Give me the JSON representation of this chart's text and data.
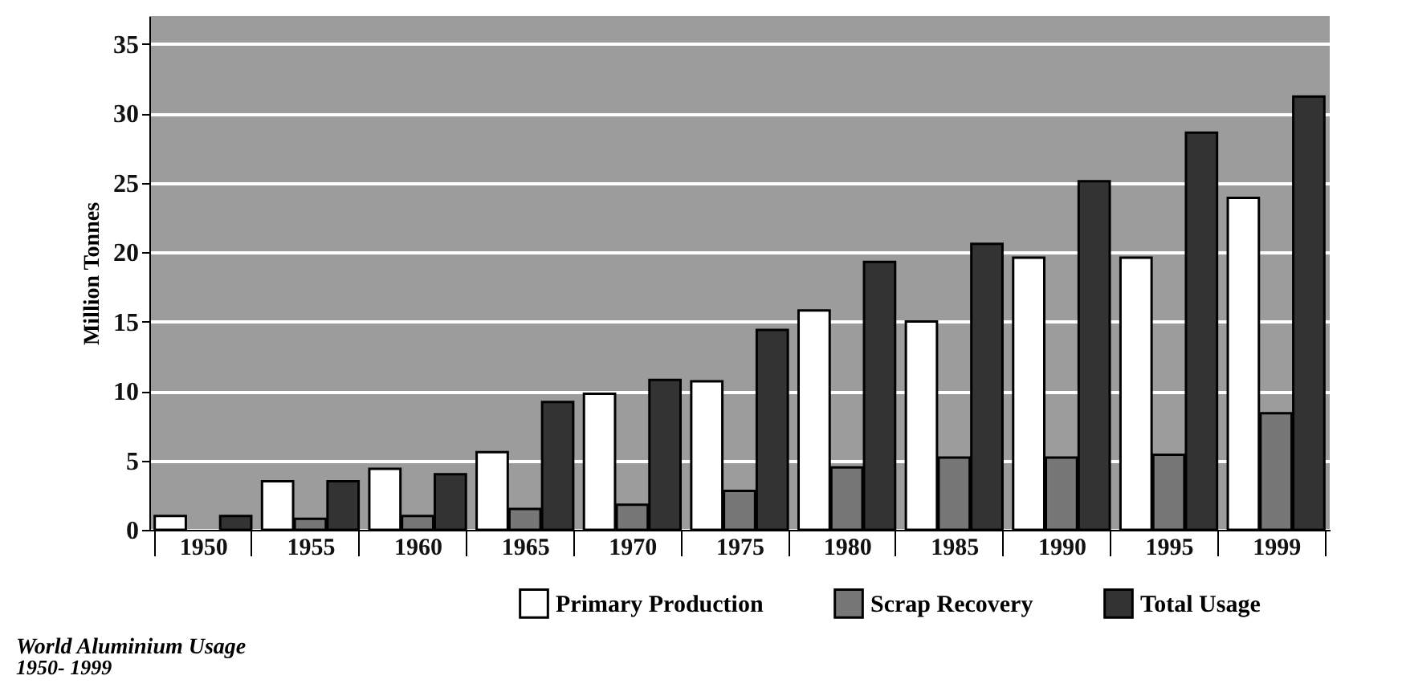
{
  "chart_data": {
    "type": "bar",
    "title": "World Aluminium Usage",
    "subtitle": "1950- 1999",
    "ylabel": "Million Tonnes",
    "categories": [
      "1950",
      "1955",
      "1960",
      "1965",
      "1970",
      "1975",
      "1980",
      "1985",
      "1990",
      "1995",
      "1999"
    ],
    "series": [
      {
        "name": "Primary Production",
        "color": "#ffffff",
        "values": [
          1.0,
          3.5,
          4.4,
          5.6,
          9.8,
          10.7,
          15.8,
          15.0,
          19.6,
          19.6,
          23.9
        ]
      },
      {
        "name": "Scrap Recovery",
        "color": "#777777",
        "values": [
          null,
          0.8,
          1.0,
          1.5,
          1.8,
          2.8,
          4.5,
          5.2,
          5.2,
          5.4,
          8.4
        ]
      },
      {
        "name": "Total Usage",
        "color": "#333333",
        "values": [
          1.0,
          3.5,
          4.0,
          9.2,
          10.8,
          14.4,
          19.3,
          20.6,
          25.1,
          28.6,
          31.2
        ]
      }
    ],
    "ylim": [
      0,
      37
    ],
    "yticks": [
      0,
      5,
      10,
      15,
      20,
      25,
      30,
      35
    ],
    "grid": "y",
    "legend": "bottom"
  }
}
